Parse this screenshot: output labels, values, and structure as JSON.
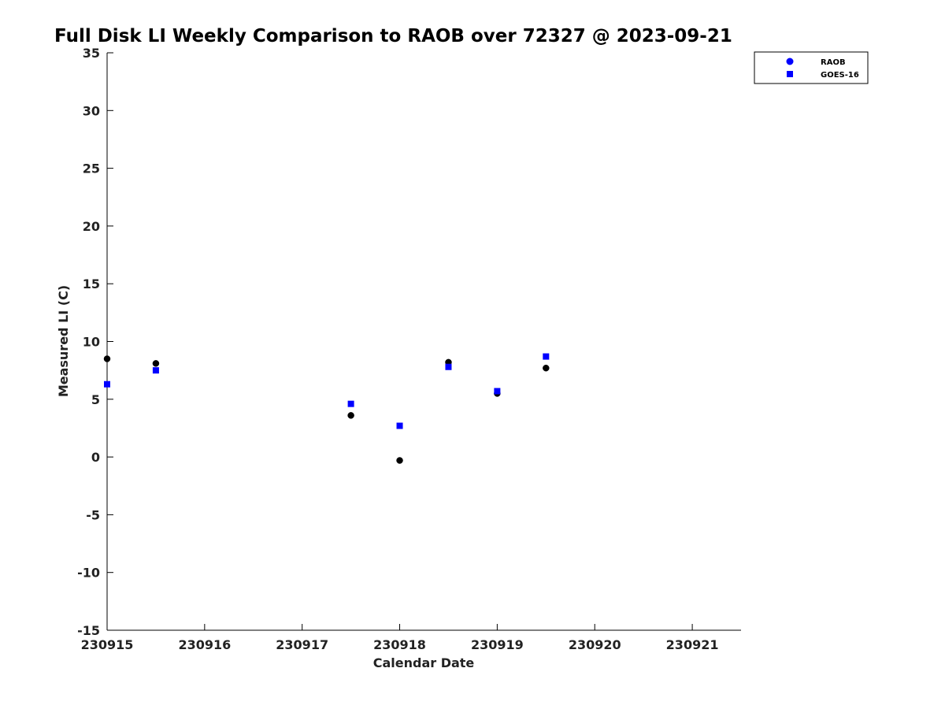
{
  "chart_data": {
    "type": "scatter",
    "title": "Full Disk LI Weekly Comparison to RAOB over 72327 @ 2023-09-21",
    "xlabel": "Calendar Date",
    "ylabel": "Measured LI (C)",
    "xlim": [
      0,
      6.5
    ],
    "ylim": [
      -15,
      35
    ],
    "x_ticks": [
      0,
      1,
      2,
      3,
      4,
      5,
      6
    ],
    "x_tick_labels": [
      "230915",
      "230916",
      "230917",
      "230918",
      "230919",
      "230920",
      "230921"
    ],
    "y_ticks": [
      -15,
      -10,
      -5,
      0,
      5,
      10,
      15,
      20,
      25,
      30,
      35
    ],
    "y_tick_labels": [
      "-15",
      "-10",
      "-5",
      "0",
      "5",
      "10",
      "15",
      "20",
      "25",
      "30",
      "35"
    ],
    "grid": false,
    "legend_position": "top-right",
    "series": [
      {
        "name": "RAOB",
        "marker": "circle",
        "color": "#000000",
        "legend_color": "#0000ff",
        "x": [
          0,
          0.5,
          2.5,
          3.0,
          3.5,
          4.0,
          4.5
        ],
        "y": [
          8.5,
          8.1,
          3.6,
          -0.3,
          8.2,
          5.5,
          7.7
        ]
      },
      {
        "name": "GOES-16",
        "marker": "square",
        "color": "#0000ff",
        "legend_color": "#0000ff",
        "x": [
          0,
          0.5,
          2.5,
          3.0,
          3.5,
          4.0,
          4.5
        ],
        "y": [
          6.3,
          7.5,
          4.6,
          2.7,
          7.8,
          5.7,
          8.7
        ]
      }
    ]
  }
}
